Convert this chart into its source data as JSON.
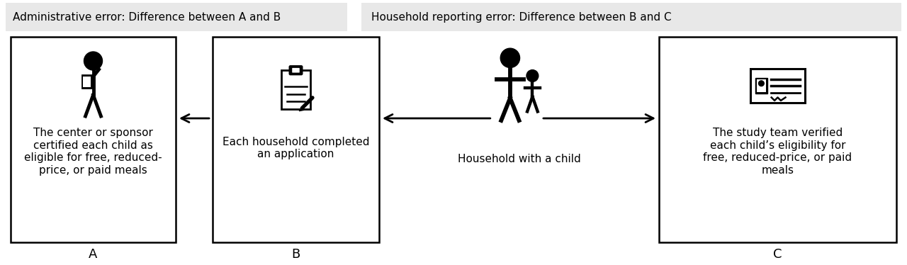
{
  "bg_color": "#ffffff",
  "header_bg": "#e8e8e8",
  "header_text_left": "Administrative error: Difference between A and B",
  "header_text_right": "Household reporting error: Difference between B and C",
  "box_A_label": "A",
  "box_B_label": "B",
  "box_C_label": "C",
  "box_A_text": "The center or sponsor\ncertified each child as\neligible for free, reduced-\nprice, or paid meals",
  "box_B_text": "Each household completed\nan application",
  "box_C_text": "The study team verified\neach child’s eligibility for\nfree, reduced-price, or paid\nmeals",
  "middle_label": "Household with a child",
  "box_color": "#ffffff",
  "border_color": "#000000",
  "text_color": "#000000",
  "arrow_color": "#000000",
  "font_size_header": 11,
  "font_size_box": 11,
  "font_size_label": 13
}
